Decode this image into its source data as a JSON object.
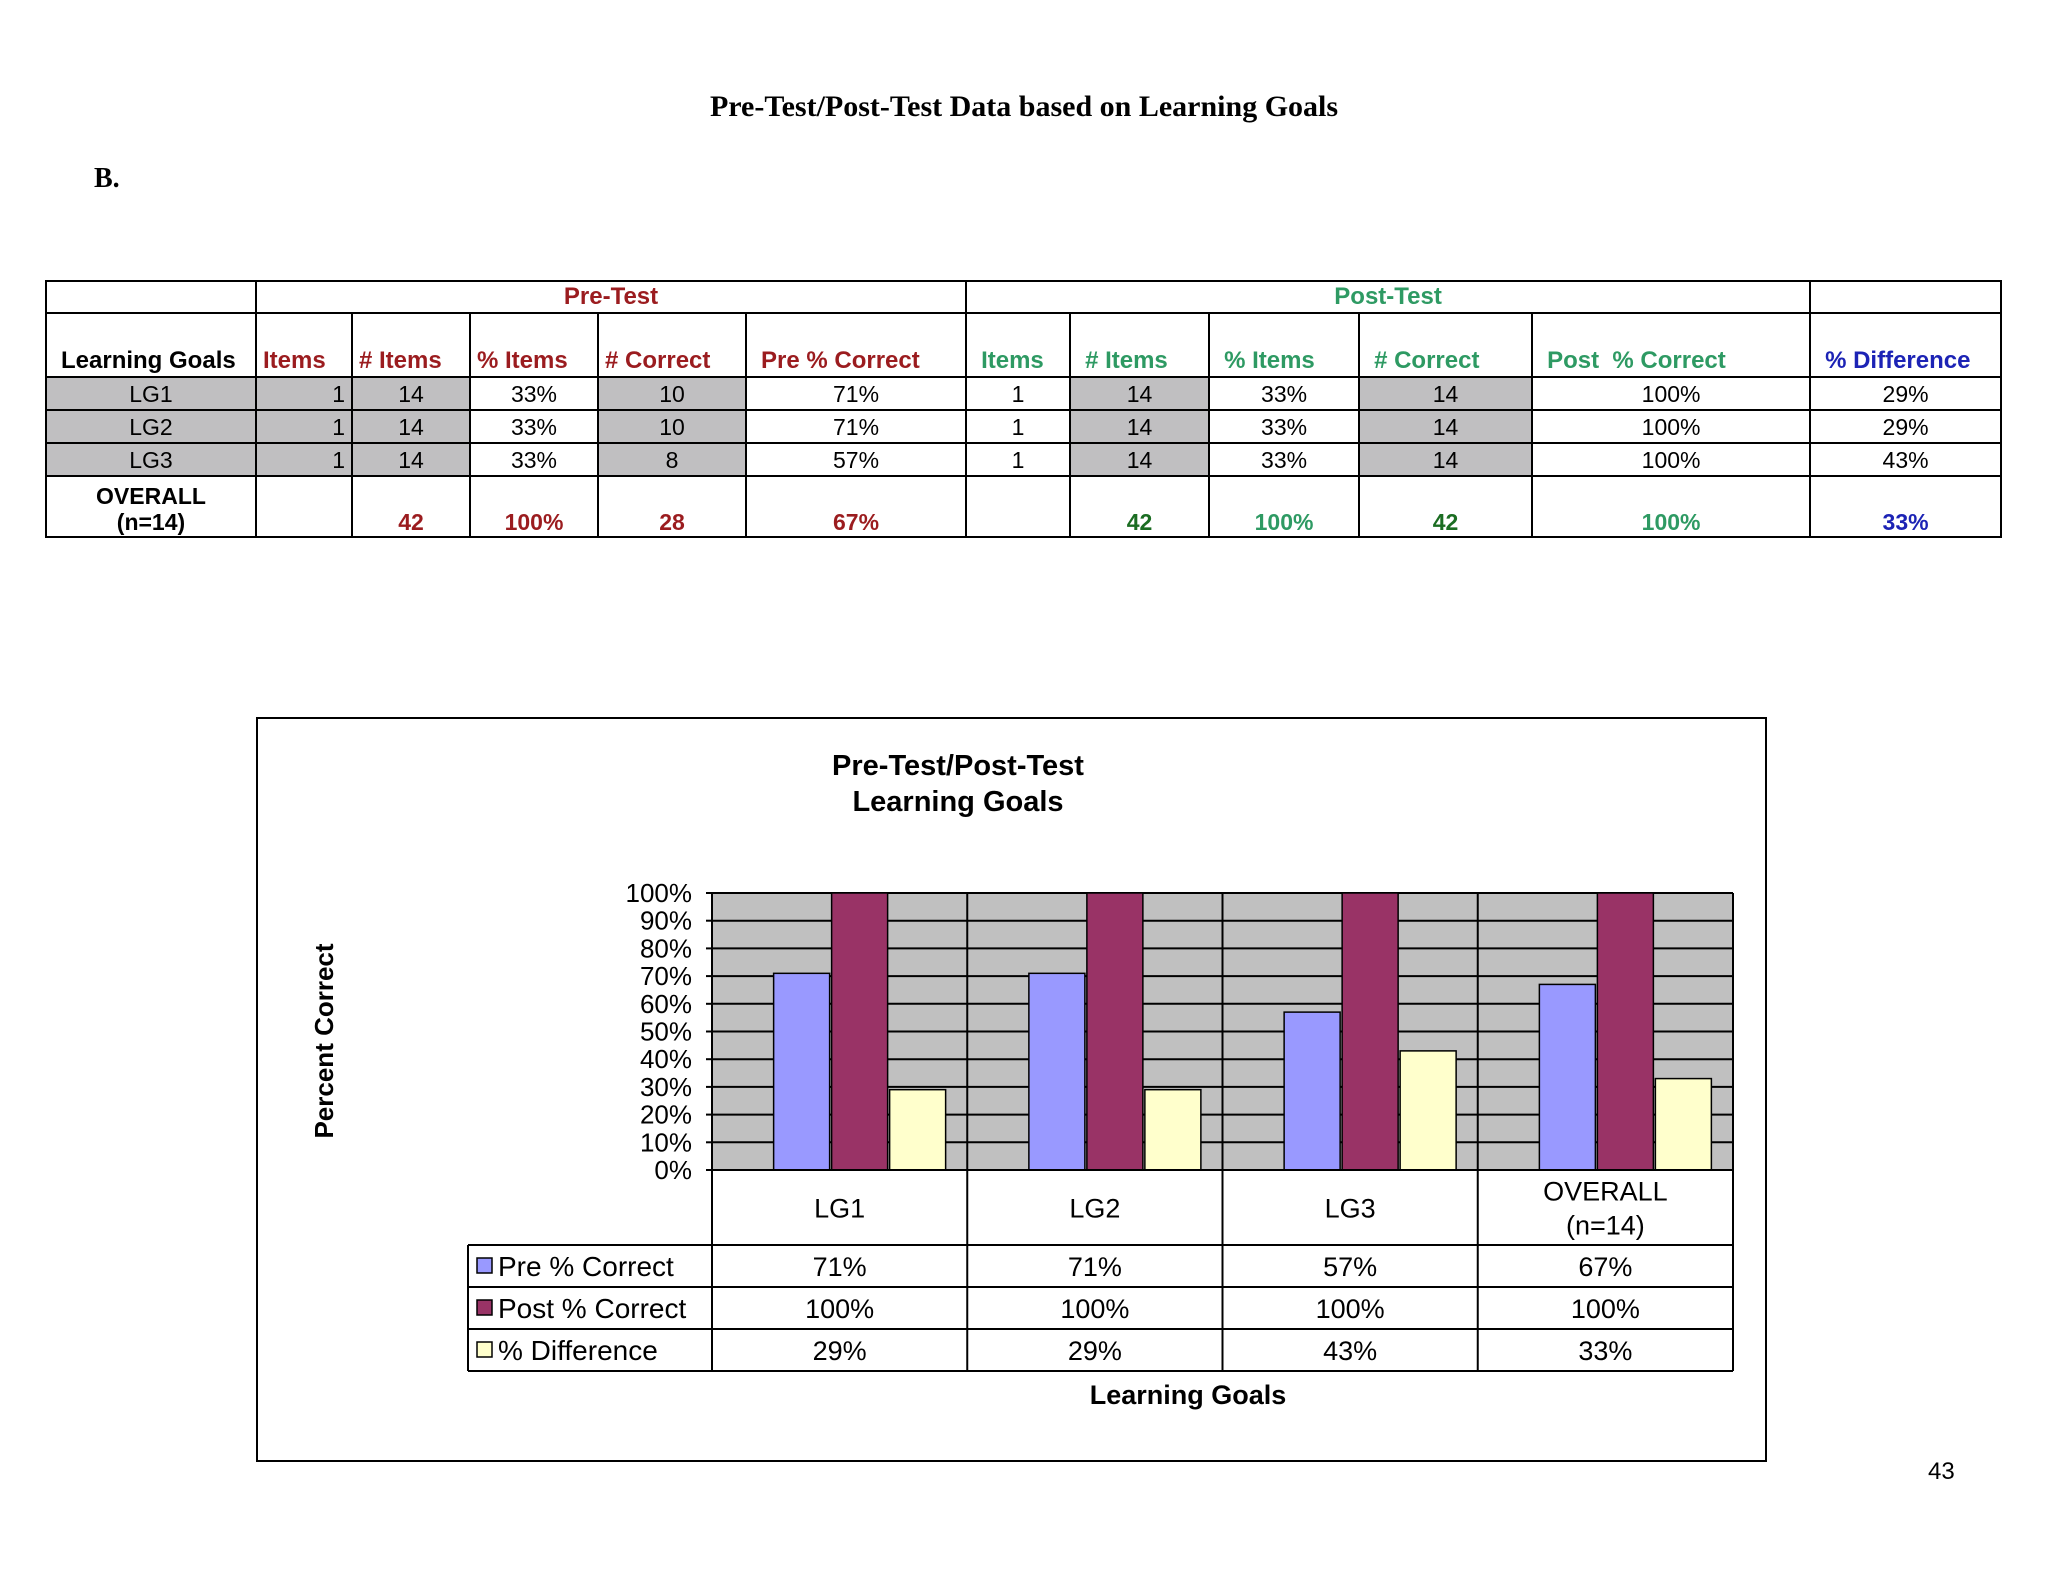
{
  "page": {
    "title": "Pre-Test/Post-Test  Data based on Learning Goals",
    "section": "B.",
    "page_number": "43"
  },
  "table": {
    "pre_group": "Pre-Test",
    "post_group": "Post-Test",
    "headers": {
      "goals": "Learning Goals",
      "pre": [
        "Items",
        "# Items",
        "% Items",
        "# Correct",
        "Pre % Correct"
      ],
      "post": [
        "Items",
        "# Items",
        "% Items",
        "# Correct",
        "Post  % Correct"
      ],
      "diff": "% Difference"
    },
    "rows": [
      {
        "goal": "LG1",
        "pre": [
          "1",
          "14",
          "33%",
          "10",
          "71%"
        ],
        "post": [
          "1",
          "14",
          "33%",
          "14",
          "100%"
        ],
        "diff": "29%"
      },
      {
        "goal": "LG2",
        "pre": [
          "1",
          "14",
          "33%",
          "10",
          "71%"
        ],
        "post": [
          "1",
          "14",
          "33%",
          "14",
          "100%"
        ],
        "diff": "29%"
      },
      {
        "goal": "LG3",
        "pre": [
          "1",
          "14",
          "33%",
          "8",
          "57%"
        ],
        "post": [
          "1",
          "14",
          "33%",
          "14",
          "100%"
        ],
        "diff": "43%"
      }
    ],
    "overall": {
      "label_line1": "OVERALL",
      "label_line2": "(n=14)",
      "pre": [
        "",
        "42",
        "100%",
        "28",
        "67%"
      ],
      "post": [
        "",
        "42",
        "100%",
        "42",
        "100%"
      ],
      "diff": "33%"
    },
    "colors": {
      "pre": "#9b1c1f",
      "post": "#2e9a63",
      "post_dark": "#1b6d22",
      "diff": "#1c23b5",
      "shade": "#c0bfc1"
    }
  },
  "chart_data": {
    "type": "bar",
    "title_line1": "Pre-Test/Post-Test",
    "title_line2": "Learning Goals",
    "xlabel": "Learning Goals",
    "ylabel": "Percent Correct",
    "ylim": [
      0,
      100
    ],
    "y_ticks": [
      0,
      10,
      20,
      30,
      40,
      50,
      60,
      70,
      80,
      90,
      100
    ],
    "y_tick_labels": [
      "0%",
      "10%",
      "20%",
      "30%",
      "40%",
      "50%",
      "60%",
      "70%",
      "80%",
      "90%",
      "100%"
    ],
    "categories": [
      [
        "LG1"
      ],
      [
        "LG2"
      ],
      [
        "LG3"
      ],
      [
        "OVERALL",
        "(n=14)"
      ]
    ],
    "series": [
      {
        "name": "Pre % Correct",
        "values": [
          71,
          71,
          57,
          67
        ],
        "labels": [
          "71%",
          "71%",
          "57%",
          "67%"
        ],
        "color": "#9999ff"
      },
      {
        "name": "Post % Correct",
        "values": [
          100,
          100,
          100,
          100
        ],
        "labels": [
          "100%",
          "100%",
          "100%",
          "100%"
        ],
        "color": "#993366"
      },
      {
        "name": "% Difference",
        "values": [
          29,
          29,
          43,
          33
        ],
        "labels": [
          "29%",
          "29%",
          "43%",
          "33%"
        ],
        "color": "#ffffcc"
      }
    ],
    "plot_background": "#c0c0c0",
    "grid": true,
    "legend": "data-table-left"
  }
}
